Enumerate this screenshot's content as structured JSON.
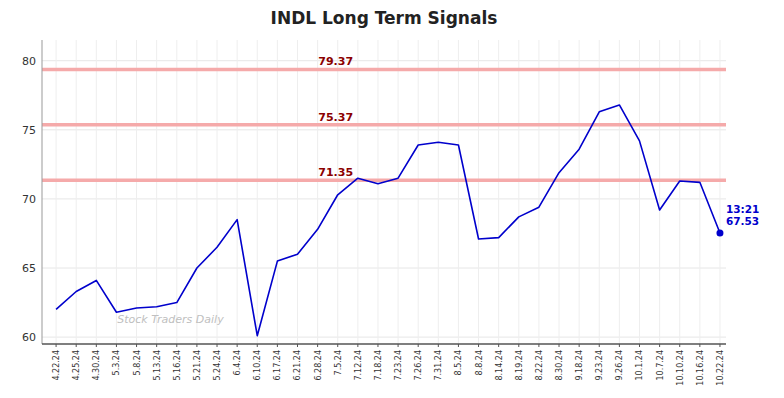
{
  "chart_data": {
    "type": "line",
    "title": "INDL Long Term Signals",
    "categories": [
      "4.22.24",
      "4.25.24",
      "4.30.24",
      "5.3.24",
      "5.8.24",
      "5.13.24",
      "5.16.24",
      "5.21.24",
      "5.24.24",
      "6.4.24",
      "6.10.24",
      "6.17.24",
      "6.21.24",
      "6.28.24",
      "7.5.24",
      "7.12.24",
      "7.18.24",
      "7.23.24",
      "7.26.24",
      "7.31.24",
      "8.5.24",
      "8.8.24",
      "8.14.24",
      "8.19.24",
      "8.22.24",
      "8.30.24",
      "9.18.24",
      "9.23.24",
      "9.26.24",
      "10.1.24",
      "10.7.24",
      "10.10.24",
      "10.16.24",
      "10.22.24"
    ],
    "values": [
      62.0,
      63.3,
      64.1,
      61.8,
      62.1,
      62.2,
      62.5,
      65.0,
      66.5,
      68.5,
      60.1,
      65.5,
      66.0,
      67.8,
      70.3,
      71.5,
      71.1,
      71.5,
      73.9,
      74.1,
      73.9,
      67.1,
      67.2,
      68.7,
      69.4,
      71.9,
      73.6,
      76.3,
      76.8,
      74.2,
      69.2,
      71.3,
      71.2,
      67.53
    ],
    "color": "#0000cc",
    "hlines": {
      "values": [
        79.37,
        75.37,
        71.35
      ],
      "color": "#f5aaaa",
      "label_color": "#8b0000"
    },
    "annotation": "13:21\n67.53",
    "watermark": "Stock Traders Daily",
    "ylim": [
      59.5,
      81.5
    ],
    "yticks": [
      60,
      65,
      70,
      75,
      80
    ],
    "grid": true
  }
}
